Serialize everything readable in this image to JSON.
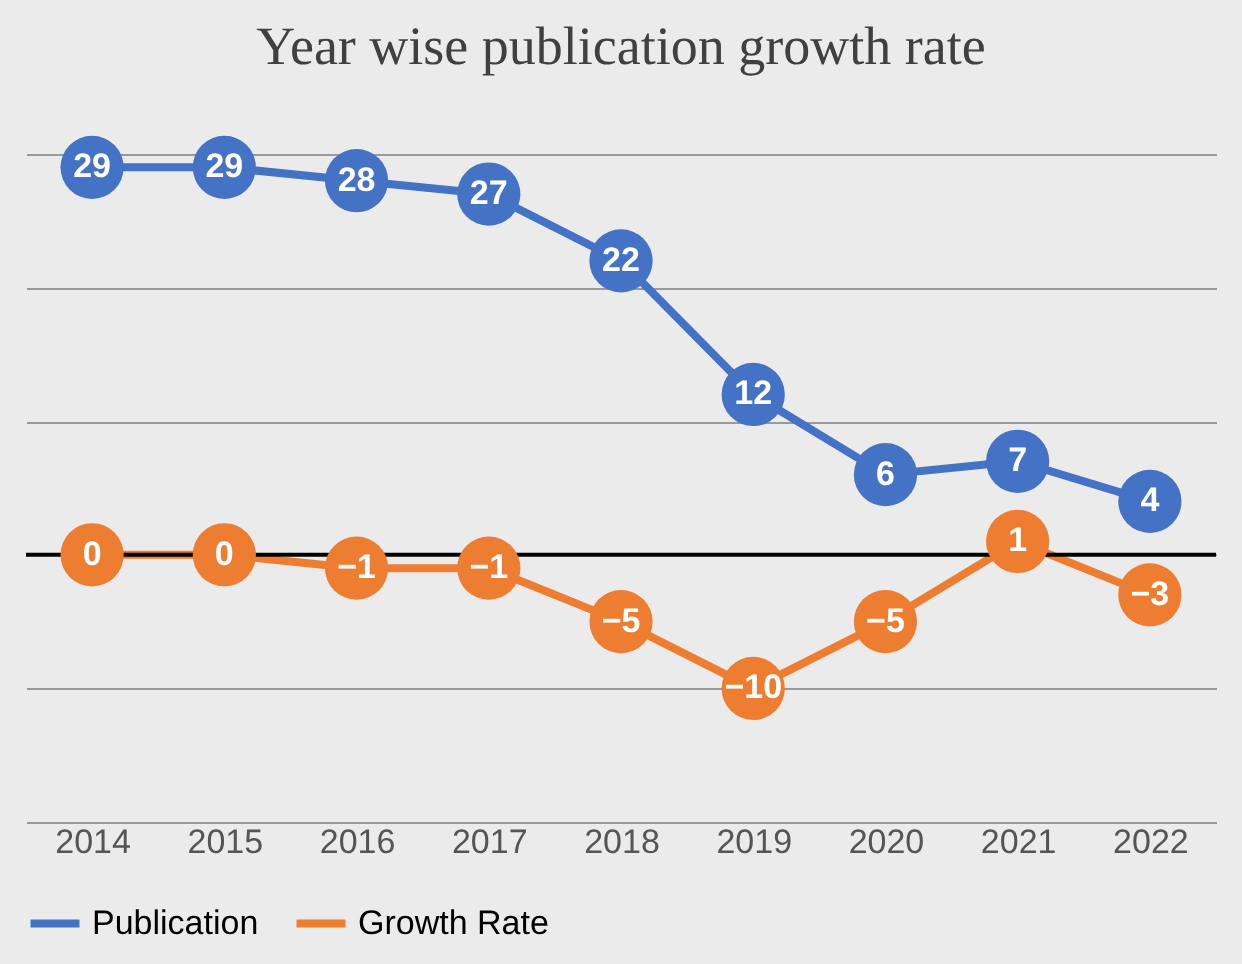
{
  "chart_data": {
    "type": "line",
    "title": "Year wise publication growth rate",
    "categories": [
      "2014",
      "2015",
      "2016",
      "2017",
      "2018",
      "2019",
      "2020",
      "2021",
      "2022"
    ],
    "series": [
      {
        "name": "Publication",
        "color": "#4472c4",
        "values": [
          29,
          29,
          28,
          27,
          22,
          12,
          6,
          7,
          4
        ]
      },
      {
        "name": "Growth Rate",
        "color": "#ed7d31",
        "values": [
          0,
          0,
          -1,
          -1,
          -5,
          -10,
          -5,
          1,
          -3
        ]
      }
    ],
    "ylim": [
      -20,
      30
    ],
    "yticks": [
      {
        "value": -20,
        "label": null
      },
      {
        "value": -10,
        "label": null
      },
      {
        "value": 0,
        "label": null
      },
      {
        "value": 10,
        "label": null
      },
      {
        "value": 20,
        "label": null
      },
      {
        "value": 30,
        "label": null
      }
    ],
    "ref_lines": [
      {
        "axis": "y",
        "value": 0,
        "color": "#000000"
      }
    ],
    "tick_labels": "x",
    "grid": "y",
    "legend": "bottom",
    "marker": "circle",
    "line_style": "solid",
    "data_labels": true
  }
}
